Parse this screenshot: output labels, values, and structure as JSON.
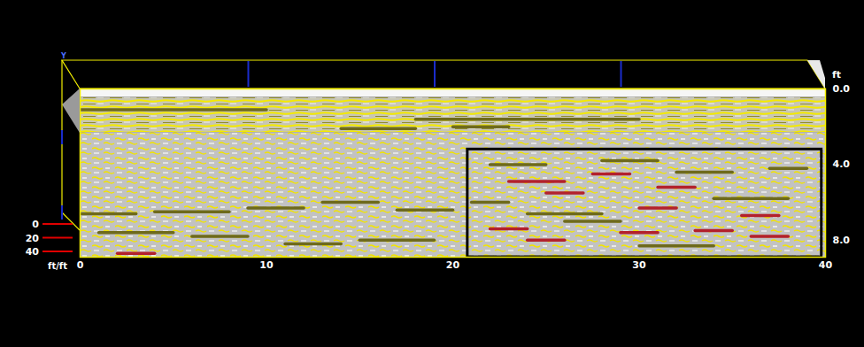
{
  "chart_data": {
    "type": "radargram",
    "corner_label": "Y",
    "x_label": "ft/ft",
    "y_label": "ft",
    "xlim": [
      0,
      40
    ],
    "xticks": [
      0,
      10,
      20,
      30,
      40
    ],
    "ylim": [
      0,
      8.9
    ],
    "yticks": [
      {
        "value": 0,
        "label": "0.0"
      },
      {
        "value": 4,
        "label": "4.0"
      },
      {
        "value": 8,
        "label": "8.0"
      }
    ],
    "depth_ticks": [
      0,
      20,
      40
    ],
    "layers": [
      {
        "kind": "surface",
        "depth": [
          0,
          0.45
        ]
      },
      {
        "kind": "layered",
        "depth": [
          0.45,
          2.3
        ]
      },
      {
        "kind": "speckled",
        "depth": [
          2.3,
          8.9
        ]
      }
    ],
    "reflectors": {
      "moderate": {
        "color": "#6e6a1c",
        "segments": [
          [
            0,
            3,
            6.6
          ],
          [
            4,
            8,
            6.5
          ],
          [
            9,
            12,
            6.3
          ],
          [
            13,
            16,
            6.0
          ],
          [
            17,
            20,
            6.4
          ],
          [
            1,
            5,
            7.6
          ],
          [
            6,
            9,
            7.8
          ],
          [
            11,
            14,
            8.2
          ],
          [
            15,
            19,
            8.0
          ],
          [
            21,
            23,
            6.0
          ],
          [
            24,
            28,
            6.6
          ],
          [
            26,
            29,
            7.0
          ],
          [
            30,
            34,
            8.3
          ],
          [
            34,
            38,
            5.8
          ],
          [
            22,
            25,
            4.0
          ],
          [
            28,
            31,
            3.8
          ],
          [
            32,
            35,
            4.4
          ],
          [
            37,
            39,
            4.2
          ],
          [
            14,
            18,
            2.1
          ],
          [
            20,
            23,
            2.0
          ],
          [
            0,
            10,
            1.1
          ],
          [
            18,
            30,
            1.6
          ]
        ]
      },
      "strong": {
        "color": "#b3212c",
        "segments": [
          [
            22,
            24,
            7.4
          ],
          [
            23,
            26,
            4.9
          ],
          [
            25,
            27,
            5.5
          ],
          [
            27.5,
            29.5,
            4.5
          ],
          [
            29,
            31,
            7.6
          ],
          [
            30,
            32,
            6.3
          ],
          [
            33,
            35,
            7.5
          ],
          [
            35.5,
            37.5,
            6.7
          ],
          [
            36,
            38,
            7.8
          ],
          [
            2,
            4,
            8.7
          ],
          [
            24,
            26,
            8.0
          ],
          [
            31,
            33,
            5.2
          ]
        ]
      }
    },
    "highlight_box": {
      "x": [
        20.8,
        39.8
      ],
      "y": [
        3.2,
        8.9
      ],
      "color": "#000000"
    }
  }
}
